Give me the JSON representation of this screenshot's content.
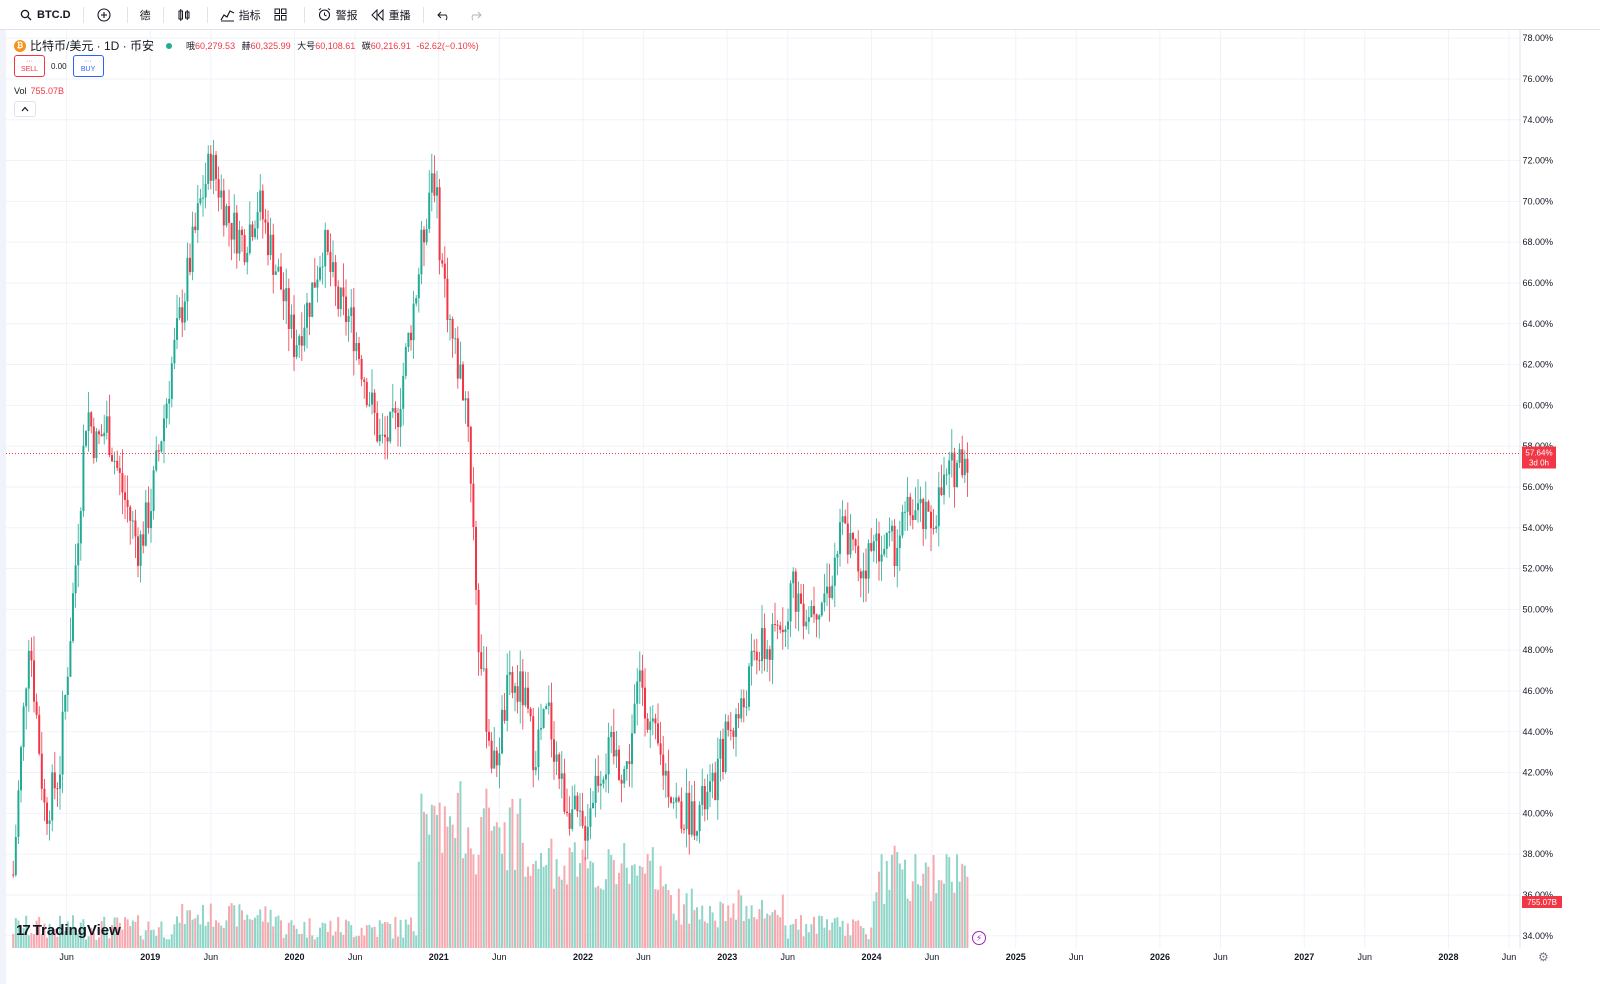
{
  "toolbar": {
    "symbol": "BTC.D",
    "interval": "德",
    "indicators": "指标",
    "alerts": "警报",
    "replay": "重播"
  },
  "legend": {
    "coin_glyph": "₿",
    "title": "比特币/美元 · 1D · 币安",
    "o_label": "哦",
    "o_value": "60,279.53",
    "h_label": "赫",
    "h_value": "60,325.99",
    "l_label": "大号",
    "l_value": "60,108.61",
    "c_label": "碳",
    "c_value": "60,216.91",
    "change": "-62.62(−0.10%)"
  },
  "trade": {
    "sell_label": "SELL",
    "sell_price": "···",
    "spread": "0.00",
    "buy_label": "BUY",
    "buy_price": "···"
  },
  "volume": {
    "label": "Vol",
    "value": "755.07B"
  },
  "branding": {
    "logo_mark": "17",
    "logo_text": "TradingView"
  },
  "colors": {
    "up": "#22ab94",
    "down": "#f23645",
    "up_vol": "#8fd6c9",
    "down_vol": "#f7a9b0",
    "grid": "#f0f3fa",
    "price_line": "#f23645"
  },
  "chart_data": {
    "type": "candlestick",
    "ylabel": "",
    "ylim": [
      33.4,
      78.4
    ],
    "y_ticks": [
      "34.00%",
      "36.00%",
      "38.00%",
      "40.00%",
      "42.00%",
      "44.00%",
      "46.00%",
      "48.00%",
      "50.00%",
      "52.00%",
      "54.00%",
      "56.00%",
      "58.00%",
      "60.00%",
      "62.00%",
      "64.00%",
      "66.00%",
      "68.00%",
      "70.00%",
      "72.00%",
      "74.00%",
      "76.00%",
      "78.00%"
    ],
    "x_ticks": [
      "Jun",
      "2019",
      "Jun",
      "2020",
      "Jun",
      "2021",
      "Jun",
      "2022",
      "Jun",
      "2023",
      "Jun",
      "2024",
      "Jun",
      "2025",
      "Jun",
      "2026",
      "Jun",
      "2027",
      "Jun",
      "2028",
      "Jun"
    ],
    "x_tick_dates": [
      2018.42,
      2019.0,
      2019.42,
      2020.0,
      2020.42,
      2021.0,
      2021.42,
      2022.0,
      2022.42,
      2023.0,
      2023.42,
      2024.0,
      2024.42,
      2025.0,
      2025.42,
      2026.0,
      2026.42,
      2027.0,
      2027.42,
      2028.0,
      2028.42
    ],
    "last_value": 57.64,
    "last_label": "57.64%",
    "countdown": "3d 0h",
    "volume_last_label": "755.07B",
    "trend": [
      {
        "date": 2018.05,
        "value": 37
      },
      {
        "date": 2018.16,
        "value": 49
      },
      {
        "date": 2018.27,
        "value": 40
      },
      {
        "date": 2018.37,
        "value": 42
      },
      {
        "date": 2018.48,
        "value": 52
      },
      {
        "date": 2018.56,
        "value": 60
      },
      {
        "date": 2018.62,
        "value": 58
      },
      {
        "date": 2018.7,
        "value": 59
      },
      {
        "date": 2018.8,
        "value": 56
      },
      {
        "date": 2018.92,
        "value": 53
      },
      {
        "date": 2019.0,
        "value": 55
      },
      {
        "date": 2019.15,
        "value": 62
      },
      {
        "date": 2019.25,
        "value": 66
      },
      {
        "date": 2019.35,
        "value": 70
      },
      {
        "date": 2019.42,
        "value": 72
      },
      {
        "date": 2019.55,
        "value": 69
      },
      {
        "date": 2019.65,
        "value": 68
      },
      {
        "date": 2019.75,
        "value": 70
      },
      {
        "date": 2019.9,
        "value": 66
      },
      {
        "date": 2020.0,
        "value": 63
      },
      {
        "date": 2020.1,
        "value": 65
      },
      {
        "date": 2020.2,
        "value": 68
      },
      {
        "date": 2020.3,
        "value": 65
      },
      {
        "date": 2020.4,
        "value": 64
      },
      {
        "date": 2020.5,
        "value": 61
      },
      {
        "date": 2020.6,
        "value": 58
      },
      {
        "date": 2020.7,
        "value": 59
      },
      {
        "date": 2020.85,
        "value": 66
      },
      {
        "date": 2020.96,
        "value": 72
      },
      {
        "date": 2021.02,
        "value": 67
      },
      {
        "date": 2021.1,
        "value": 63
      },
      {
        "date": 2021.2,
        "value": 60
      },
      {
        "date": 2021.28,
        "value": 48
      },
      {
        "date": 2021.38,
        "value": 42
      },
      {
        "date": 2021.48,
        "value": 46
      },
      {
        "date": 2021.58,
        "value": 46
      },
      {
        "date": 2021.66,
        "value": 43
      },
      {
        "date": 2021.76,
        "value": 45
      },
      {
        "date": 2021.86,
        "value": 41
      },
      {
        "date": 2022.0,
        "value": 39
      },
      {
        "date": 2022.1,
        "value": 42
      },
      {
        "date": 2022.2,
        "value": 43
      },
      {
        "date": 2022.3,
        "value": 42
      },
      {
        "date": 2022.4,
        "value": 47
      },
      {
        "date": 2022.47,
        "value": 44
      },
      {
        "date": 2022.57,
        "value": 42
      },
      {
        "date": 2022.67,
        "value": 40
      },
      {
        "date": 2022.78,
        "value": 40
      },
      {
        "date": 2022.9,
        "value": 41
      },
      {
        "date": 2023.0,
        "value": 44
      },
      {
        "date": 2023.1,
        "value": 45
      },
      {
        "date": 2023.2,
        "value": 48
      },
      {
        "date": 2023.3,
        "value": 48
      },
      {
        "date": 2023.45,
        "value": 51
      },
      {
        "date": 2023.55,
        "value": 50
      },
      {
        "date": 2023.7,
        "value": 51
      },
      {
        "date": 2023.8,
        "value": 54
      },
      {
        "date": 2023.92,
        "value": 52
      },
      {
        "date": 2024.02,
        "value": 53
      },
      {
        "date": 2024.15,
        "value": 53
      },
      {
        "date": 2024.28,
        "value": 55
      },
      {
        "date": 2024.4,
        "value": 54
      },
      {
        "date": 2024.5,
        "value": 56
      },
      {
        "date": 2024.62,
        "value": 57.6
      },
      {
        "date": 2024.68,
        "value": 57.64
      }
    ]
  }
}
